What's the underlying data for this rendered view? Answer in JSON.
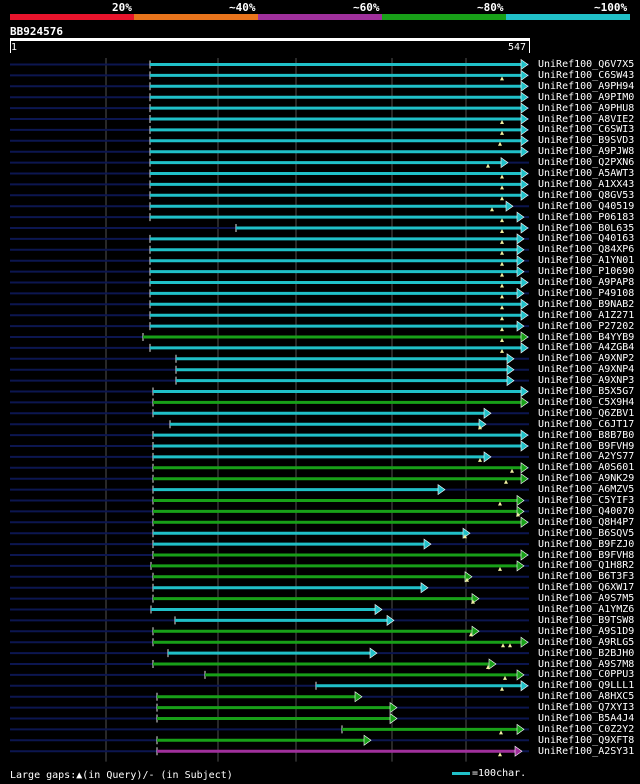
{
  "legend": {
    "labels": [
      "20%",
      "~40%",
      "~60%",
      "~80%",
      "~100%"
    ],
    "colors": [
      "#e8142c",
      "#e8741c",
      "#a0309c",
      "#18a018",
      "#20c0c8"
    ]
  },
  "query": {
    "id": "BB924576",
    "start": "1",
    "end": "547"
  },
  "colors": {
    "track": "#0c1650",
    "cyan": "#20c0c8",
    "green": "#18a018",
    "magenta": "#a0309c",
    "gap_marker": "#f0f0a0",
    "grid": "#505050"
  },
  "hits": [
    {
      "label": "UniRef100_Q6V7X5",
      "start": 150,
      "end": 528,
      "color": "cyan",
      "gaps": []
    },
    {
      "label": "UniRef100_C6SW43",
      "start": 150,
      "end": 528,
      "color": "cyan",
      "gaps": [
        502
      ]
    },
    {
      "label": "UniRef100_A9PH94",
      "start": 150,
      "end": 528,
      "color": "cyan",
      "gaps": []
    },
    {
      "label": "UniRef100_A9PIM0",
      "start": 150,
      "end": 528,
      "color": "cyan",
      "gaps": []
    },
    {
      "label": "UniRef100_A9PHU8",
      "start": 150,
      "end": 528,
      "color": "cyan",
      "gaps": []
    },
    {
      "label": "UniRef100_A8VIE2",
      "start": 150,
      "end": 528,
      "color": "cyan",
      "gaps": [
        502
      ]
    },
    {
      "label": "UniRef100_C6SWI3",
      "start": 150,
      "end": 528,
      "color": "cyan",
      "gaps": [
        502
      ]
    },
    {
      "label": "UniRef100_B9SVD3",
      "start": 150,
      "end": 528,
      "color": "cyan",
      "gaps": [
        500
      ]
    },
    {
      "label": "UniRef100_A9PJW8",
      "start": 150,
      "end": 528,
      "color": "cyan",
      "gaps": []
    },
    {
      "label": "UniRef100_Q2PXN6",
      "start": 150,
      "end": 508,
      "color": "cyan",
      "gaps": [
        488
      ]
    },
    {
      "label": "UniRef100_A5AWT3",
      "start": 150,
      "end": 528,
      "color": "cyan",
      "gaps": [
        502
      ]
    },
    {
      "label": "UniRef100_A1XX43",
      "start": 150,
      "end": 528,
      "color": "cyan",
      "gaps": [
        502
      ]
    },
    {
      "label": "UniRef100_Q8GV53",
      "start": 150,
      "end": 528,
      "color": "cyan",
      "gaps": [
        502
      ]
    },
    {
      "label": "UniRef100_Q40519",
      "start": 150,
      "end": 513,
      "color": "cyan",
      "gaps": [
        492
      ]
    },
    {
      "label": "UniRef100_P06183",
      "start": 150,
      "end": 524,
      "color": "cyan",
      "gaps": [
        502
      ]
    },
    {
      "label": "UniRef100_B0L635",
      "start": 236,
      "end": 528,
      "color": "cyan",
      "gaps": [
        502
      ]
    },
    {
      "label": "UniRef100_Q40163",
      "start": 150,
      "end": 524,
      "color": "cyan",
      "gaps": [
        502
      ]
    },
    {
      "label": "UniRef100_Q84XP6",
      "start": 150,
      "end": 524,
      "color": "cyan",
      "gaps": [
        502
      ]
    },
    {
      "label": "UniRef100_A1YN01",
      "start": 150,
      "end": 524,
      "color": "cyan",
      "gaps": [
        502
      ]
    },
    {
      "label": "UniRef100_P10690",
      "start": 150,
      "end": 524,
      "color": "cyan",
      "gaps": [
        502
      ]
    },
    {
      "label": "UniRef100_A9PAP8",
      "start": 150,
      "end": 528,
      "color": "cyan",
      "gaps": [
        502
      ]
    },
    {
      "label": "UniRef100_P49108",
      "start": 150,
      "end": 524,
      "color": "cyan",
      "gaps": [
        502
      ]
    },
    {
      "label": "UniRef100_B9NAB2",
      "start": 150,
      "end": 528,
      "color": "cyan",
      "gaps": [
        502
      ]
    },
    {
      "label": "UniRef100_A1Z271",
      "start": 150,
      "end": 528,
      "color": "cyan",
      "gaps": [
        502
      ]
    },
    {
      "label": "UniRef100_P27202",
      "start": 150,
      "end": 524,
      "color": "cyan",
      "gaps": [
        502
      ]
    },
    {
      "label": "UniRef100_B4YYB9",
      "start": 143,
      "end": 528,
      "color": "green",
      "gaps": [
        502
      ]
    },
    {
      "label": "UniRef100_A4ZGB4",
      "start": 150,
      "end": 528,
      "color": "cyan",
      "gaps": [
        502
      ]
    },
    {
      "label": "UniRef100_A9XNP2",
      "start": 176,
      "end": 514,
      "color": "cyan",
      "gaps": []
    },
    {
      "label": "UniRef100_A9XNP4",
      "start": 176,
      "end": 514,
      "color": "cyan",
      "gaps": []
    },
    {
      "label": "UniRef100_A9XNP3",
      "start": 176,
      "end": 514,
      "color": "cyan",
      "gaps": []
    },
    {
      "label": "UniRef100_B5X5G7",
      "start": 153,
      "end": 528,
      "color": "cyan",
      "gaps": []
    },
    {
      "label": "UniRef100_C5X9H4",
      "start": 153,
      "end": 528,
      "color": "green",
      "gaps": []
    },
    {
      "label": "UniRef100_Q6ZBV1",
      "start": 153,
      "end": 491,
      "color": "cyan",
      "gaps": []
    },
    {
      "label": "UniRef100_C6JT17",
      "start": 170,
      "end": 486,
      "color": "cyan",
      "gaps": [
        480
      ]
    },
    {
      "label": "UniRef100_B8B7B0",
      "start": 153,
      "end": 528,
      "color": "cyan",
      "gaps": []
    },
    {
      "label": "UniRef100_B9FVH9",
      "start": 153,
      "end": 528,
      "color": "cyan",
      "gaps": []
    },
    {
      "label": "UniRef100_A2YS77",
      "start": 153,
      "end": 491,
      "color": "cyan",
      "gaps": [
        480
      ]
    },
    {
      "label": "UniRef100_A0S601",
      "start": 153,
      "end": 528,
      "color": "green",
      "gaps": [
        512
      ]
    },
    {
      "label": "UniRef100_A9NK29",
      "start": 153,
      "end": 528,
      "color": "green",
      "gaps": [
        506
      ]
    },
    {
      "label": "UniRef100_A6MZV5",
      "start": 153,
      "end": 445,
      "color": "cyan",
      "gaps": []
    },
    {
      "label": "UniRef100_C5YIF3",
      "start": 153,
      "end": 524,
      "color": "green",
      "gaps": [
        500
      ]
    },
    {
      "label": "UniRef100_Q40070",
      "start": 153,
      "end": 524,
      "color": "green",
      "gaps": [
        518
      ]
    },
    {
      "label": "UniRef100_Q8H4P7",
      "start": 153,
      "end": 528,
      "color": "green",
      "gaps": []
    },
    {
      "label": "UniRef100_B6SQV5",
      "start": 153,
      "end": 470,
      "color": "cyan",
      "gaps": [
        465
      ]
    },
    {
      "label": "UniRef100_B9FZJ0",
      "start": 153,
      "end": 431,
      "color": "cyan",
      "gaps": []
    },
    {
      "label": "UniRef100_B9FVH8",
      "start": 153,
      "end": 528,
      "color": "green",
      "gaps": []
    },
    {
      "label": "UniRef100_Q1H8R2",
      "start": 151,
      "end": 524,
      "color": "green",
      "gaps": [
        500
      ]
    },
    {
      "label": "UniRef100_B6T3F3",
      "start": 153,
      "end": 472,
      "color": "green",
      "gaps": [
        467
      ]
    },
    {
      "label": "UniRef100_Q6XW17",
      "start": 153,
      "end": 428,
      "color": "cyan",
      "gaps": []
    },
    {
      "label": "UniRef100_A9S7M5",
      "start": 153,
      "end": 479,
      "color": "green",
      "gaps": [
        473
      ]
    },
    {
      "label": "UniRef100_A1YMZ6",
      "start": 151,
      "end": 382,
      "color": "cyan",
      "gaps": []
    },
    {
      "label": "UniRef100_B9TSW8",
      "start": 175,
      "end": 394,
      "color": "cyan",
      "gaps": []
    },
    {
      "label": "UniRef100_A9S1D9",
      "start": 153,
      "end": 479,
      "color": "green",
      "gaps": [
        471
      ]
    },
    {
      "label": "UniRef100_A9RLG5",
      "start": 153,
      "end": 528,
      "color": "green",
      "gaps": [
        503,
        510
      ]
    },
    {
      "label": "UniRef100_B2BJH0",
      "start": 168,
      "end": 377,
      "color": "cyan",
      "gaps": []
    },
    {
      "label": "UniRef100_A9S7M8",
      "start": 153,
      "end": 496,
      "color": "green",
      "gaps": [
        488
      ]
    },
    {
      "label": "UniRef100_C0PPU3",
      "start": 205,
      "end": 524,
      "color": "green",
      "gaps": [
        505
      ]
    },
    {
      "label": "UniRef100_Q9LLL1",
      "start": 316,
      "end": 528,
      "color": "cyan",
      "gaps": [
        502
      ]
    },
    {
      "label": "UniRef100_A8HXC5",
      "start": 157,
      "end": 362,
      "color": "green",
      "gaps": []
    },
    {
      "label": "UniRef100_Q7XYI3",
      "start": 157,
      "end": 397,
      "color": "green",
      "gaps": []
    },
    {
      "label": "UniRef100_B5A4J4",
      "start": 157,
      "end": 397,
      "color": "green",
      "gaps": []
    },
    {
      "label": "UniRef100_C0Z2Y2",
      "start": 342,
      "end": 524,
      "color": "green",
      "gaps": [
        501
      ]
    },
    {
      "label": "UniRef100_Q9XFT8",
      "start": 157,
      "end": 371,
      "color": "green",
      "gaps": []
    },
    {
      "label": "UniRef100_A2SY31",
      "start": 157,
      "end": 522,
      "color": "magenta",
      "gaps": [
        500
      ]
    }
  ],
  "footer": {
    "gaps_text": "Large gaps:▲(in Query)/- (in Subject)",
    "key_text": "=100char."
  }
}
